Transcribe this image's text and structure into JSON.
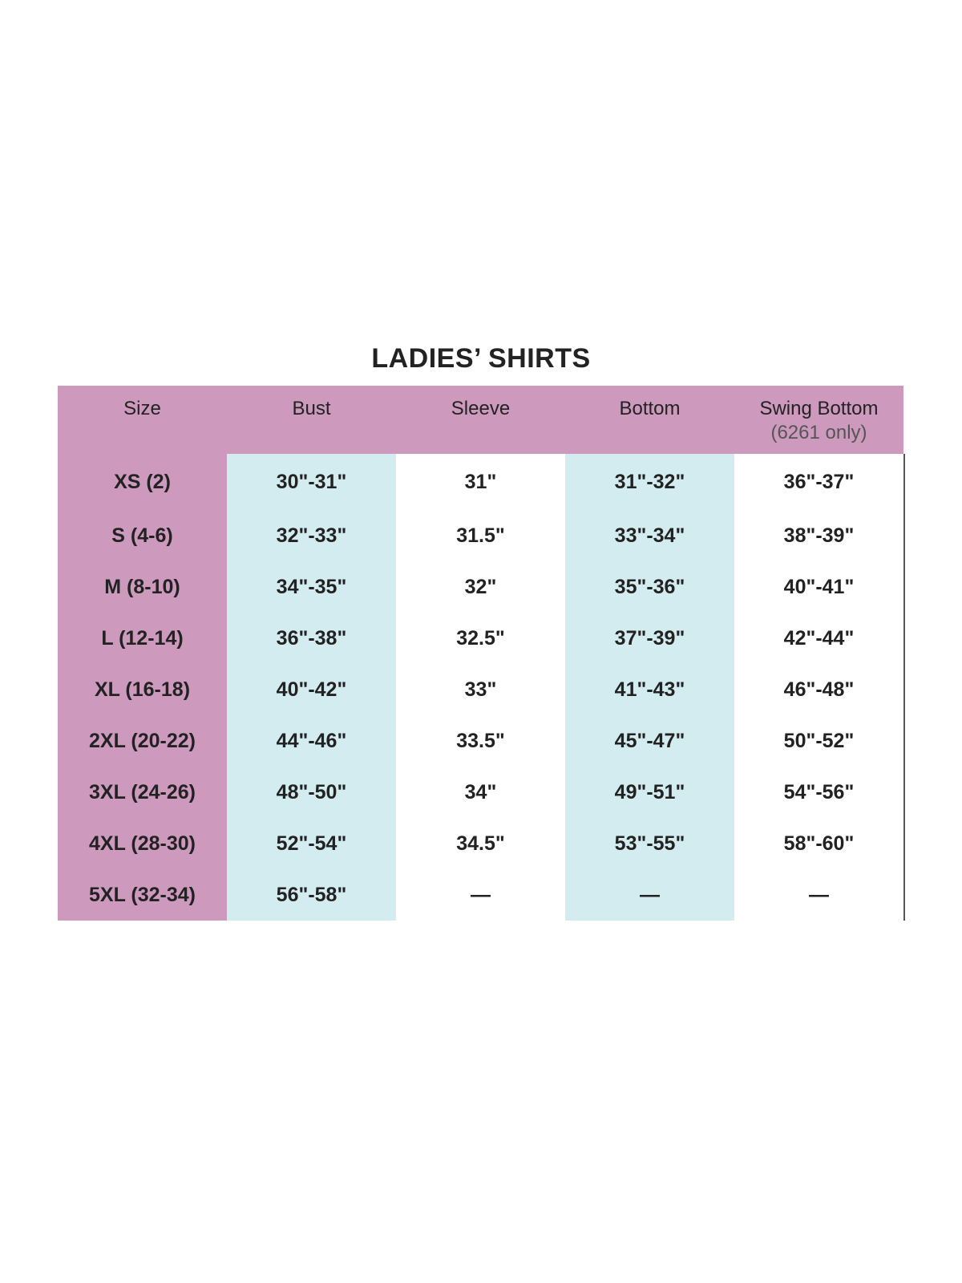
{
  "title": "LADIES’ SHIRTS",
  "colors": {
    "header": "#cd9abd",
    "stripe": "#d3ecf0"
  },
  "headers": [
    "Size",
    "Bust",
    "Sleeve",
    "Bottom",
    "Swing Bottom"
  ],
  "swing_note": "(6261 only)",
  "columns": {
    "size": [
      "XS (2)",
      "S (4-6)",
      "M (8-10)",
      "L (12-14)",
      "XL (16-18)",
      "2XL (20-22)",
      "3XL (24-26)",
      "4XL (28-30)",
      "5XL (32-34)"
    ],
    "bust": [
      "30\"-31\"",
      "32\"-33\"",
      "34\"-35\"",
      "36\"-38\"",
      "40\"-42\"",
      "44\"-46\"",
      "48\"-50\"",
      "52\"-54\"",
      "56\"-58\""
    ],
    "sleeve": [
      "31\"",
      "31.5\"",
      "32\"",
      "32.5\"",
      "33\"",
      "33.5\"",
      "34\"",
      "34.5\"",
      "—"
    ],
    "bottom": [
      "31\"-32\"",
      "33\"-34\"",
      "35\"-36\"",
      "37\"-39\"",
      "41\"-43\"",
      "45\"-47\"",
      "49\"-51\"",
      "53\"-55\"",
      "—"
    ],
    "swing": [
      "36\"-37\"",
      "38\"-39\"",
      "40\"-41\"",
      "42\"-44\"",
      "46\"-48\"",
      "50\"-52\"",
      "54\"-56\"",
      "58\"-60\"",
      "—"
    ]
  }
}
